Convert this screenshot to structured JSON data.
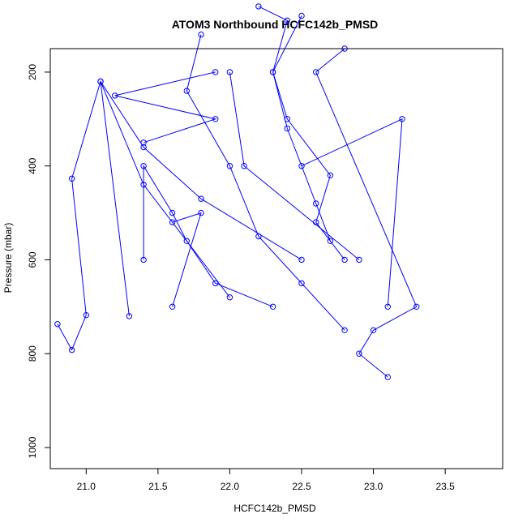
{
  "chart_data": {
    "type": "scatter",
    "title": "ATOM3 Northbound HCFC142b_PMSD",
    "xlabel": "HCFC142b_PMSD",
    "ylabel": "Pressure (mbar)",
    "xlim": [
      20.75,
      23.9
    ],
    "ylim": [
      1045,
      150
    ],
    "y_reversed": true,
    "xticks": [
      "21.0",
      "21.5",
      "22.0",
      "22.5",
      "23.0",
      "23.5"
    ],
    "yticks": [
      "200",
      "400",
      "600",
      "800",
      "1000"
    ],
    "color": "#0000ff",
    "marker": "open-circle",
    "connect_points": true,
    "series": [
      {
        "x": [
          21.3,
          21.1,
          21.4,
          21.8,
          22.5
        ],
        "y": [
          720,
          220,
          360,
          470,
          600
        ]
      },
      {
        "x": [
          21.4,
          21.4,
          21.6,
          21.7,
          21.9,
          22.3
        ],
        "y": [
          600,
          400,
          500,
          560,
          650,
          700
        ]
      },
      {
        "x": [
          22.2,
          22.4,
          22.3,
          22.4,
          22.6,
          22.7
        ],
        "y": [
          60,
          90,
          200,
          320,
          480,
          560
        ]
      },
      {
        "x": [
          22.5,
          22.3,
          22.4,
          22.7,
          22.6,
          22.8
        ],
        "y": [
          80,
          200,
          300,
          420,
          520,
          600
        ]
      },
      {
        "x": [
          21.8,
          21.7,
          22.0,
          22.2,
          22.5,
          22.8
        ],
        "y": [
          120,
          240,
          400,
          550,
          650,
          750
        ]
      },
      {
        "x": [
          20.8,
          20.9,
          21.0,
          20.9,
          21.1,
          21.4,
          22.0
        ],
        "y": [
          737,
          792,
          718,
          427,
          220,
          440,
          680
        ]
      },
      {
        "x": [
          22.8,
          22.6,
          23.3,
          23.0,
          22.9,
          23.1
        ],
        "y": [
          150,
          200,
          700,
          750,
          800,
          850
        ]
      },
      {
        "x": [
          21.9,
          21.2,
          21.9,
          21.4
        ],
        "y": [
          200,
          250,
          300,
          350
        ]
      },
      {
        "x": [
          21.6,
          21.8,
          21.6
        ],
        "y": [
          700,
          500,
          520
        ]
      },
      {
        "x": [
          23.1,
          23.2,
          22.5
        ],
        "y": [
          700,
          300,
          400
        ]
      },
      {
        "x": [
          22.0,
          22.1,
          22.9
        ],
        "y": [
          200,
          400,
          600
        ]
      }
    ]
  }
}
